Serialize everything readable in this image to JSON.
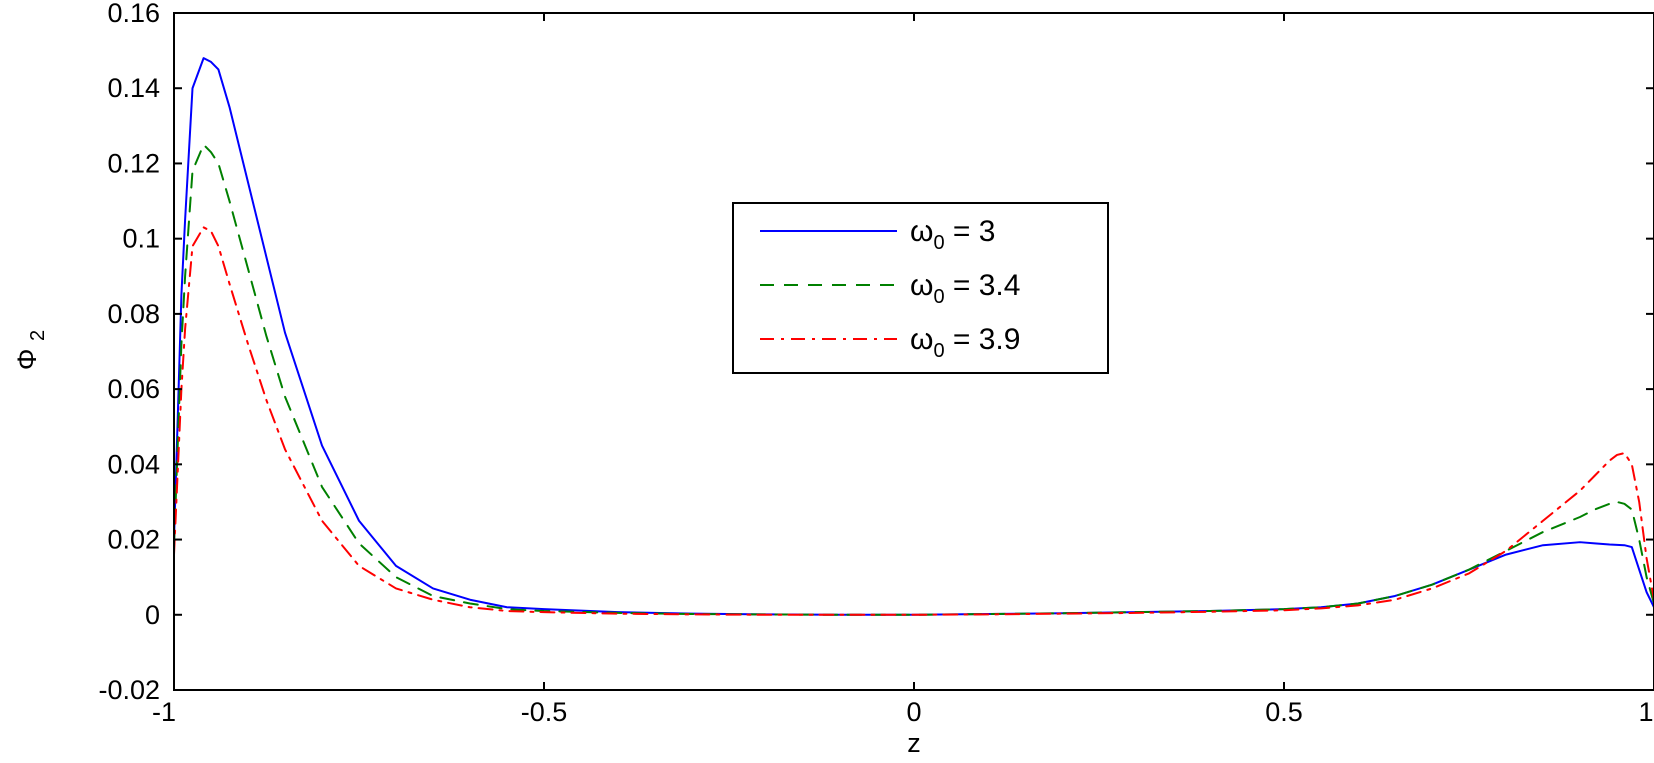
{
  "chart_data": {
    "type": "line",
    "title": "",
    "xlabel": "z",
    "ylabel": "Φ",
    "ylabel_subscript": "2",
    "xlim": [
      -1,
      1
    ],
    "ylim": [
      -0.02,
      0.16
    ],
    "xticks": [
      -1,
      -0.5,
      0,
      0.5,
      1
    ],
    "xtick_labels": [
      "-1",
      "-0.5",
      "0",
      "0.5",
      "1"
    ],
    "yticks": [
      -0.02,
      0,
      0.02,
      0.04,
      0.06,
      0.08,
      0.1,
      0.12,
      0.14,
      0.16
    ],
    "ytick_labels": [
      "-0.02",
      "0",
      "0.02",
      "0.04",
      "0.06",
      "0.08",
      "0.1",
      "0.12",
      "0.14",
      "0.16"
    ],
    "grid": false,
    "legend_position": "top-center",
    "series": [
      {
        "name": "ω0 = 3",
        "label_symbol": "ω",
        "label_subscript": "0",
        "label_value": " = 3",
        "color": "#0000ff",
        "style": "solid",
        "x": [
          -1.0,
          -0.995,
          -0.99,
          -0.985,
          -0.975,
          -0.96,
          -0.95,
          -0.94,
          -0.925,
          -0.9,
          -0.875,
          -0.85,
          -0.8,
          -0.75,
          -0.7,
          -0.65,
          -0.6,
          -0.55,
          -0.5,
          -0.4,
          -0.3,
          -0.2,
          -0.1,
          0.0,
          0.1,
          0.2,
          0.3,
          0.4,
          0.5,
          0.55,
          0.6,
          0.65,
          0.7,
          0.75,
          0.8,
          0.85,
          0.9,
          0.92,
          0.94,
          0.96,
          0.97,
          0.98,
          0.99,
          1.0
        ],
        "y": [
          0.02,
          0.052,
          0.085,
          0.105,
          0.14,
          0.148,
          0.147,
          0.145,
          0.135,
          0.115,
          0.095,
          0.075,
          0.045,
          0.025,
          0.013,
          0.007,
          0.004,
          0.002,
          0.0015,
          0.0007,
          0.0003,
          0.0001,
          0.0,
          0.0,
          0.0002,
          0.0004,
          0.0007,
          0.001,
          0.0015,
          0.002,
          0.003,
          0.005,
          0.008,
          0.012,
          0.016,
          0.0185,
          0.0193,
          0.019,
          0.0187,
          0.0185,
          0.018,
          0.012,
          0.006,
          0.002
        ]
      },
      {
        "name": "ω0 = 3.4",
        "label_symbol": "ω",
        "label_subscript": "0",
        "label_value": " = 3.4",
        "color": "#008000",
        "style": "dashed",
        "x": [
          -1.0,
          -0.995,
          -0.99,
          -0.985,
          -0.975,
          -0.96,
          -0.95,
          -0.94,
          -0.925,
          -0.9,
          -0.875,
          -0.85,
          -0.8,
          -0.75,
          -0.7,
          -0.65,
          -0.6,
          -0.55,
          -0.5,
          -0.4,
          -0.3,
          -0.2,
          -0.1,
          0.0,
          0.1,
          0.2,
          0.3,
          0.4,
          0.5,
          0.55,
          0.6,
          0.65,
          0.7,
          0.75,
          0.8,
          0.85,
          0.9,
          0.92,
          0.94,
          0.95,
          0.96,
          0.97,
          0.98,
          0.99,
          1.0
        ],
        "y": [
          0.018,
          0.045,
          0.072,
          0.09,
          0.118,
          0.125,
          0.123,
          0.12,
          0.11,
          0.092,
          0.074,
          0.058,
          0.034,
          0.019,
          0.01,
          0.005,
          0.003,
          0.0015,
          0.001,
          0.0005,
          0.0002,
          0.0001,
          0.0,
          0.0,
          0.0002,
          0.0004,
          0.0007,
          0.001,
          0.0015,
          0.002,
          0.003,
          0.005,
          0.008,
          0.012,
          0.017,
          0.022,
          0.026,
          0.028,
          0.0295,
          0.03,
          0.0295,
          0.028,
          0.02,
          0.01,
          0.003
        ]
      },
      {
        "name": "ω0 = 3.9",
        "label_symbol": "ω",
        "label_subscript": "0",
        "label_value": " = 3.9",
        "color": "#ff0000",
        "style": "dashdot",
        "x": [
          -1.0,
          -0.995,
          -0.99,
          -0.985,
          -0.975,
          -0.96,
          -0.95,
          -0.94,
          -0.925,
          -0.9,
          -0.875,
          -0.85,
          -0.8,
          -0.75,
          -0.7,
          -0.65,
          -0.6,
          -0.55,
          -0.5,
          -0.4,
          -0.3,
          -0.2,
          -0.1,
          0.0,
          0.1,
          0.2,
          0.3,
          0.4,
          0.5,
          0.55,
          0.6,
          0.65,
          0.7,
          0.75,
          0.8,
          0.85,
          0.9,
          0.92,
          0.94,
          0.95,
          0.96,
          0.97,
          0.98,
          0.99,
          1.0
        ],
        "y": [
          0.016,
          0.038,
          0.06,
          0.076,
          0.098,
          0.103,
          0.102,
          0.098,
          0.088,
          0.072,
          0.057,
          0.044,
          0.025,
          0.013,
          0.007,
          0.004,
          0.002,
          0.001,
          0.0007,
          0.0003,
          0.0001,
          0.0,
          0.0,
          0.0,
          0.0001,
          0.0003,
          0.0005,
          0.0008,
          0.0012,
          0.0017,
          0.0025,
          0.004,
          0.007,
          0.011,
          0.017,
          0.025,
          0.033,
          0.037,
          0.041,
          0.0425,
          0.043,
          0.04,
          0.03,
          0.015,
          0.004
        ]
      }
    ]
  }
}
